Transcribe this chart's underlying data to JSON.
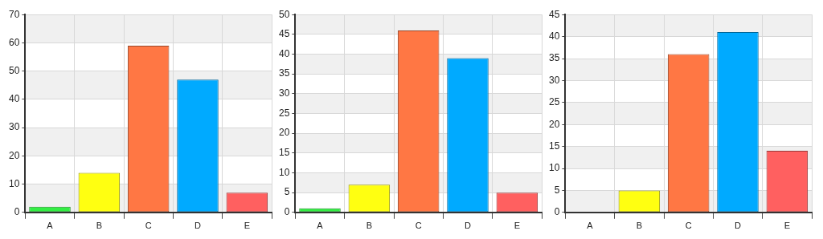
{
  "chart_data": [
    {
      "type": "bar",
      "categories": [
        "A",
        "B",
        "C",
        "D",
        "E"
      ],
      "values": [
        2,
        14,
        59,
        47,
        7
      ],
      "colors": [
        "#33ee44",
        "#ffff11",
        "#ff7744",
        "#00aaff",
        "#ff6060"
      ],
      "ylim": [
        0,
        70
      ],
      "yticks": [
        0,
        10,
        20,
        30,
        40,
        50,
        60,
        70
      ],
      "grid": true,
      "legend": false
    },
    {
      "type": "bar",
      "categories": [
        "A",
        "B",
        "C",
        "D",
        "E"
      ],
      "values": [
        1,
        7,
        46,
        39,
        5
      ],
      "colors": [
        "#33ee44",
        "#ffff11",
        "#ff7744",
        "#00aaff",
        "#ff6060"
      ],
      "ylim": [
        0,
        50
      ],
      "yticks": [
        0,
        5,
        10,
        15,
        20,
        25,
        30,
        35,
        40,
        45,
        50
      ],
      "grid": true,
      "legend": false
    },
    {
      "type": "bar",
      "categories": [
        "A",
        "B",
        "C",
        "D",
        "E"
      ],
      "values": [
        0,
        5,
        36,
        41,
        14
      ],
      "colors": [
        "#33ee44",
        "#ffff11",
        "#ff7744",
        "#00aaff",
        "#ff6060"
      ],
      "ylim": [
        0,
        45
      ],
      "yticks": [
        0,
        5,
        10,
        15,
        20,
        25,
        30,
        35,
        40,
        45
      ],
      "grid": true,
      "legend": false
    }
  ]
}
